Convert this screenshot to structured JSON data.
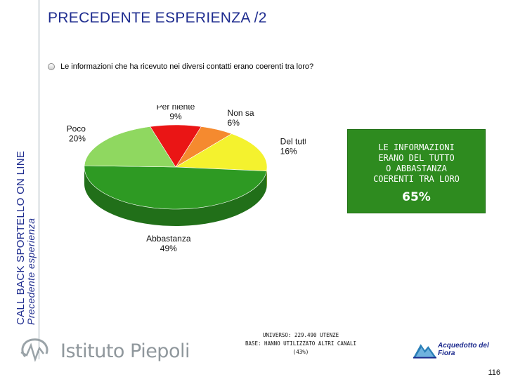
{
  "header": {
    "title": "PRECEDENTE ESPERIENZA /2"
  },
  "sidebar": {
    "line1": "CALL BACK SPORTELLO ON LINE",
    "line2": "Precedente esperienza"
  },
  "question": "Le informazioni che ha ricevuto nei diversi contatti erano coerenti tra loro?",
  "chart_data": {
    "type": "pie",
    "title": "",
    "slices": [
      {
        "name": "Non sa",
        "value": 6,
        "label": "6%",
        "color": "#f58a2f"
      },
      {
        "name": "Del tutto",
        "value": 16,
        "label": "16%",
        "color": "#f4f22e"
      },
      {
        "name": "Abbastanza",
        "value": 49,
        "label": "49%",
        "color": "#2e9a23"
      },
      {
        "name": "Poco",
        "value": 20,
        "label": "20%",
        "color": "#8fd860"
      },
      {
        "name": "Per niente",
        "value": 9,
        "label": "9%",
        "color": "#ea1515"
      }
    ]
  },
  "callout": {
    "text": "LE INFORMAZIONI\nERANO DEL TUTTO\nO ABBASTANZA\nCOERENTI TRA LORO",
    "value": "65%",
    "color": "#2e8b1f"
  },
  "footer": {
    "universe_line1": "UNIVERSO: 229.490 UTENZE",
    "universe_line2": "BASE: HANNO UTILIZZATO ALTRI CANALI",
    "universe_line3": "(43%)",
    "brand_left": "Istituto Piepoli",
    "brand_right": "Acquedotto del Fiora",
    "page_number": "116"
  }
}
